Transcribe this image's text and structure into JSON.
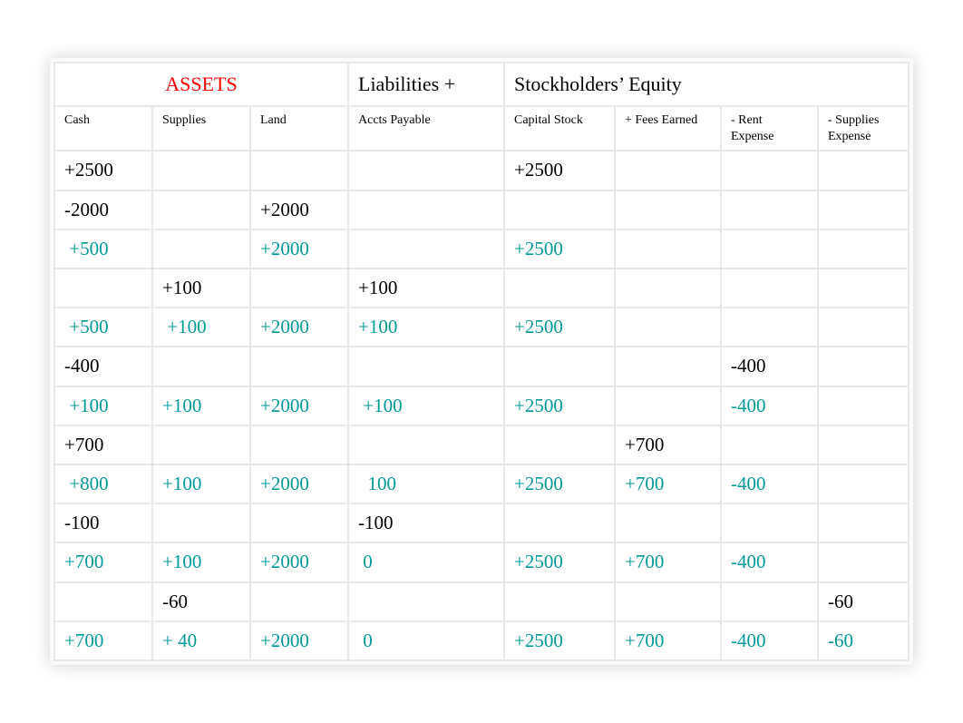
{
  "group_headers": {
    "assets": "ASSETS",
    "liabilities": "Liabilities +",
    "equity": "Stockholders’ Equity"
  },
  "sub_headers": {
    "cash": "Cash",
    "supplies": "Supplies",
    "land": "Land",
    "ap": "Accts Payable",
    "capital": "Capital Stock",
    "fees": "+ Fees Earned",
    "rent": "- Rent Expense",
    "sup_exp": "- Supplies Expense"
  },
  "rows": [
    {
      "teal": false,
      "cells": [
        "+2500",
        "",
        "",
        "",
        "+2500",
        "",
        "",
        ""
      ]
    },
    {
      "teal": false,
      "cells": [
        "-2000",
        "",
        "+2000",
        "",
        "",
        "",
        "",
        ""
      ]
    },
    {
      "teal": true,
      "cells": [
        " +500",
        "",
        "+2000",
        "",
        "+2500",
        "",
        "",
        ""
      ]
    },
    {
      "teal": false,
      "cells": [
        "",
        "+100",
        "",
        "+100",
        "",
        "",
        "",
        ""
      ]
    },
    {
      "teal": true,
      "cells": [
        " +500",
        " +100",
        "+2000",
        "+100",
        "+2500",
        "",
        "",
        ""
      ]
    },
    {
      "teal": false,
      "cells": [
        "-400",
        "",
        "",
        "",
        "",
        "",
        "-400",
        ""
      ]
    },
    {
      "teal": true,
      "cells": [
        " +100",
        "+100",
        "+2000",
        " +100",
        "+2500",
        "",
        "-400",
        ""
      ]
    },
    {
      "teal": false,
      "cells": [
        "+700",
        "",
        "",
        "",
        "",
        "+700",
        "",
        ""
      ]
    },
    {
      "teal": true,
      "cells": [
        " +800",
        "+100",
        "+2000",
        "  100",
        "+2500",
        "+700",
        "-400",
        ""
      ]
    },
    {
      "teal": false,
      "cells": [
        "-100",
        "",
        "",
        "-100",
        "",
        "",
        "",
        ""
      ]
    },
    {
      "teal": true,
      "cells": [
        "+700",
        "+100",
        "+2000",
        " 0",
        "+2500",
        "+700",
        "-400",
        ""
      ]
    },
    {
      "teal": false,
      "cells": [
        "",
        "-60",
        "",
        "",
        "",
        "",
        "",
        "-60"
      ]
    },
    {
      "teal": true,
      "cells": [
        "+700",
        "+ 40",
        "+2000",
        " 0",
        "+2500",
        "+700",
        "-400",
        "-60"
      ]
    }
  ],
  "colors": {
    "teal": "#009999",
    "red": "#ff0000",
    "black": "#000000"
  }
}
